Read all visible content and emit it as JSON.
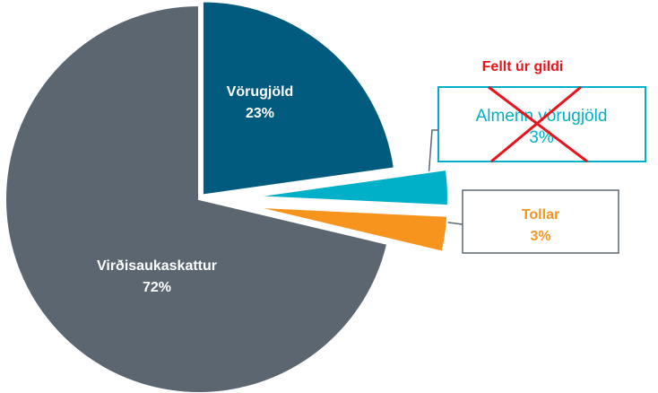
{
  "chart_data": {
    "type": "pie",
    "categories": [
      "Vörugjöld",
      "Almenn vörugjöld",
      "Tollar",
      "Virðisaukaskattur"
    ],
    "values": [
      23,
      3,
      3,
      72
    ],
    "value_labels": [
      "23%",
      "3%",
      "3%",
      "72%"
    ],
    "colors": [
      "#005b7f",
      "#00b0c8",
      "#f7941d",
      "#5b6670"
    ],
    "annotation": "Fellt úr gildi"
  }
}
